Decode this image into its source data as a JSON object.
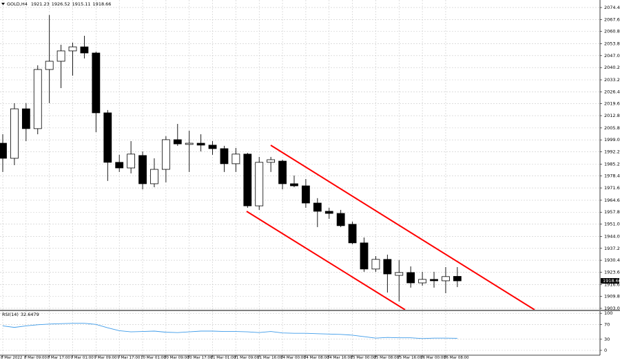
{
  "chart_data": {
    "type": "candlestick",
    "title": "GOLD,H4",
    "categories": [
      "8 Mar 2022",
      null,
      "8 Mar 09:00",
      null,
      "8 Mar 17:00",
      null,
      "9 Mar 01:00",
      null,
      "9 Mar 09:00",
      null,
      "9 Mar 17:00",
      null,
      "10 Mar 01:00",
      null,
      "10 Mar 09:00",
      null,
      "10 Mar 17:00",
      null,
      "11 Mar 01:00",
      null,
      "11 Mar 09:00",
      null,
      "11 Mar 16:00",
      null,
      "14 Mar 00:00",
      null,
      "14 Mar 08:00",
      null,
      "14 Mar 16:00",
      null,
      "15 Mar 00:00",
      null,
      "15 Mar 08:00",
      null,
      "15 Mar 16:00",
      null,
      "16 Mar 00:00",
      null,
      "16 Mar 08:00",
      null
    ],
    "series": {
      "open": [
        1997.1,
        1988.5,
        2016.7,
        2005.4,
        2039.1,
        2043.8,
        2049.7,
        2052.0,
        2048.5,
        2014.4,
        1986.2,
        1983.0,
        1990.1,
        1974.0,
        1982.2,
        1999.1,
        1996.4,
        1997.1,
        1996.0,
        1994.0,
        1985.4,
        1990.9,
        1961.4,
        1986.2,
        1986.9,
        1974.0,
        1972.8,
        1963.0,
        1958.3,
        1957.1,
        1950.9,
        1940.3,
        1925.4,
        1930.9,
        1921.8,
        1923.4,
        1917.5,
        1919.5,
        1918.7,
        1921.23
      ],
      "high": [
        2002.2,
        2019.9,
        2019.9,
        2041.5,
        2070.1,
        2053.2,
        2054.4,
        2058.3,
        2049.3,
        2016.0,
        1990.5,
        1998.3,
        1992.4,
        1988.5,
        2001.1,
        2008.1,
        2004.2,
        2002.2,
        1998.3,
        1995.6,
        1994.4,
        1991.6,
        1989.3,
        1989.3,
        1987.7,
        1978.7,
        1976.7,
        1965.8,
        1960.3,
        1959.1,
        1952.4,
        1943.4,
        1932.8,
        1933.6,
        1930.5,
        1926.9,
        1923.8,
        1923.8,
        1926.5,
        1926.52
      ],
      "low": [
        1980.7,
        1984.6,
        1998.3,
        2002.2,
        2019.9,
        2028.5,
        2035.6,
        2045.4,
        2003.4,
        1975.6,
        1980.7,
        1979.9,
        1970.8,
        1972.0,
        1974.8,
        1995.6,
        1980.7,
        1992.4,
        1990.5,
        1980.7,
        1980.7,
        1960.3,
        1959.1,
        1980.7,
        1970.8,
        1972.0,
        1960.3,
        1949.3,
        1954.0,
        1949.3,
        1939.5,
        1923.8,
        1923.8,
        1912.0,
        1906.9,
        1914.8,
        1915.9,
        1914.8,
        1911.6,
        1915.11
      ],
      "close": [
        1988.5,
        2016.7,
        2005.4,
        2039.1,
        2043.8,
        2049.7,
        2052.0,
        2048.5,
        2014.4,
        1986.2,
        1983.0,
        1990.9,
        1974.0,
        1982.2,
        1999.1,
        1996.7,
        1997.1,
        1996.0,
        1994.0,
        1985.4,
        1990.9,
        1961.4,
        1986.2,
        1987.7,
        1974.0,
        1972.8,
        1963.0,
        1958.3,
        1957.1,
        1950.1,
        1940.3,
        1925.4,
        1930.9,
        1922.6,
        1923.4,
        1917.5,
        1919.5,
        1918.7,
        1921.1,
        1918.66
      ]
    },
    "ylim": [
      1902.2,
      2078.7
    ],
    "yticks": [
      {
        "value": 2074.4,
        "label": "2074.40"
      },
      {
        "value": 2067.6,
        "label": "2067.60"
      },
      {
        "value": 2060.8,
        "label": "2060.80"
      },
      {
        "value": 2053.8,
        "label": "2053.80"
      },
      {
        "value": 2047.0,
        "label": "2047.00"
      },
      {
        "value": 2040.2,
        "label": "2040.20"
      },
      {
        "value": 2033.2,
        "label": "2033.20"
      },
      {
        "value": 2026.4,
        "label": "2026.40"
      },
      {
        "value": 2019.6,
        "label": "2019.60"
      },
      {
        "value": 2012.8,
        "label": "2012.80"
      },
      {
        "value": 2005.8,
        "label": "2005.80"
      },
      {
        "value": 1999.0,
        "label": "1999.00"
      },
      {
        "value": 1992.2,
        "label": "1992.20"
      },
      {
        "value": 1985.2,
        "label": "1985.20"
      },
      {
        "value": 1978.4,
        "label": "1978.40"
      },
      {
        "value": 1971.6,
        "label": "1971.60"
      },
      {
        "value": 1964.6,
        "label": "1964.60"
      },
      {
        "value": 1957.8,
        "label": "1957.80"
      },
      {
        "value": 1951.0,
        "label": "1951.00"
      },
      {
        "value": 1944.0,
        "label": "1944.00"
      },
      {
        "value": 1937.2,
        "label": "1937.20"
      },
      {
        "value": 1930.4,
        "label": "1930.40"
      },
      {
        "value": 1923.6,
        "label": "1923.60"
      },
      {
        "value": 1916.6,
        "label": "1916.60"
      },
      {
        "value": 1909.8,
        "label": "1909.80"
      },
      {
        "value": 1903.0,
        "label": "1903.00"
      }
    ],
    "grid": true,
    "colors": {
      "bull_fill": "#ffffff",
      "bear_fill": "#000000",
      "outline": "#000000",
      "channel": "#ff0000"
    },
    "rsi": {
      "name": "RSI(14)",
      "color": "#3d9be9",
      "values": [
        66,
        62,
        66,
        69,
        71,
        72,
        73,
        73,
        70,
        61,
        53,
        50,
        51,
        52,
        49,
        48,
        50,
        52,
        52,
        51,
        51,
        50,
        48,
        51,
        47,
        46,
        46,
        45,
        44,
        43,
        41,
        37,
        33,
        35,
        34,
        34,
        32,
        33,
        33,
        32.6479
      ],
      "ylim": [
        -13,
        104
      ],
      "yticks": [
        100,
        70,
        30,
        0
      ]
    }
  }
}
